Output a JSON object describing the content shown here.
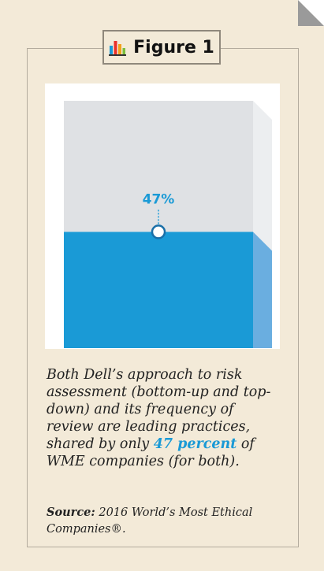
{
  "figure": {
    "title": "Figure 1",
    "icon": "bar-chart-icon"
  },
  "colors": {
    "accent": "#1a9ad6",
    "accent_side": "#6aaee0",
    "remainder": "#dfe1e4",
    "remainder_side": "#eceef0",
    "card": "#f3ead8"
  },
  "chart_data": {
    "type": "bar",
    "values": [
      47
    ],
    "ylim": [
      0,
      100
    ],
    "data_labels": [
      "47%"
    ]
  },
  "caption": {
    "before": "Both Dell’s approach to risk assessment (bottom-up and top-down) and its frequency of review are leading practices, shared by only ",
    "highlight": "47 percent",
    "after": " of WME companies (for both)."
  },
  "source": {
    "label": "Source:",
    "text": " 2016 World’s Most Ethical Companies®."
  }
}
